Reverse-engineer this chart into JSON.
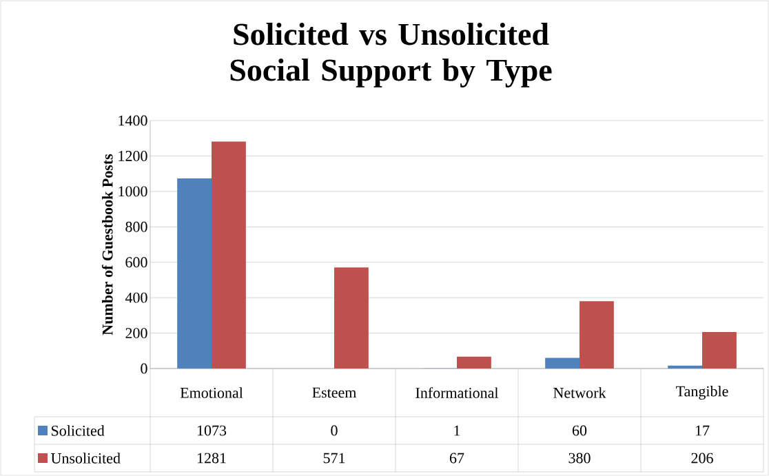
{
  "chart_data": {
    "type": "bar",
    "title": "Solicited vs Unsolicited Social Support by Type",
    "ylabel": "Number of Guestbook Posts",
    "categories": [
      "Emotional",
      "Esteem",
      "Informational",
      "Network",
      "Tangible"
    ],
    "series": [
      {
        "name": "Solicited",
        "color": "#4f81bd",
        "values": [
          1073,
          0,
          1,
          60,
          17
        ]
      },
      {
        "name": "Unsolicited",
        "color": "#c0504d",
        "values": [
          1281,
          571,
          67,
          380,
          206
        ]
      }
    ],
    "ylim": [
      0,
      1400
    ],
    "yticks": [
      0,
      200,
      400,
      600,
      800,
      1000,
      1200,
      1400
    ],
    "grid": "y",
    "legend": "bottom",
    "data_labels": true
  }
}
